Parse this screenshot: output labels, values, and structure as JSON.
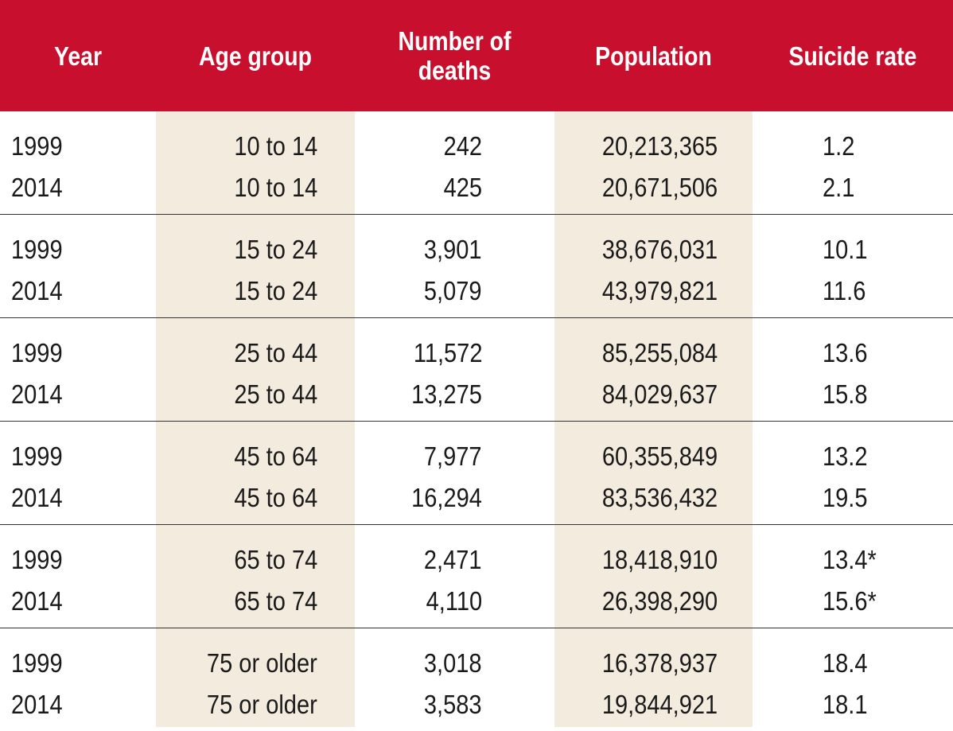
{
  "columns": {
    "year": "Year",
    "age_group": "Age group",
    "deaths_line1": "Number of",
    "deaths_line2": "deaths",
    "population": "Population",
    "rate": "Suicide rate"
  },
  "groups": [
    {
      "rows": [
        {
          "year": "1999",
          "age_group": "10 to 14",
          "deaths": "242",
          "population": "20,213,365",
          "rate": "1.2"
        },
        {
          "year": "2014",
          "age_group": "10 to 14",
          "deaths": "425",
          "population": "20,671,506",
          "rate": "2.1"
        }
      ]
    },
    {
      "rows": [
        {
          "year": "1999",
          "age_group": "15 to 24",
          "deaths": "3,901",
          "population": "38,676,031",
          "rate": "10.1"
        },
        {
          "year": "2014",
          "age_group": "15 to 24",
          "deaths": "5,079",
          "population": "43,979,821",
          "rate": "11.6"
        }
      ]
    },
    {
      "rows": [
        {
          "year": "1999",
          "age_group": "25 to 44",
          "deaths": "11,572",
          "population": "85,255,084",
          "rate": "13.6"
        },
        {
          "year": "2014",
          "age_group": "25 to 44",
          "deaths": "13,275",
          "population": "84,029,637",
          "rate": "15.8"
        }
      ]
    },
    {
      "rows": [
        {
          "year": "1999",
          "age_group": "45 to 64",
          "deaths": "7,977",
          "population": "60,355,849",
          "rate": "13.2"
        },
        {
          "year": "2014",
          "age_group": "45 to 64",
          "deaths": "16,294",
          "population": "83,536,432",
          "rate": "19.5"
        }
      ]
    },
    {
      "rows": [
        {
          "year": "1999",
          "age_group": "65 to 74",
          "deaths": "2,471",
          "population": "18,418,910",
          "rate": "13.4*"
        },
        {
          "year": "2014",
          "age_group": "65 to 74",
          "deaths": "4,110",
          "population": "26,398,290",
          "rate": "15.6*"
        }
      ]
    },
    {
      "rows": [
        {
          "year": "1999",
          "age_group": "75 or older",
          "deaths": "3,018",
          "population": "16,378,937",
          "rate": "18.4"
        },
        {
          "year": "2014",
          "age_group": "75 or older",
          "deaths": "3,583",
          "population": "19,844,921",
          "rate": "18.1"
        }
      ]
    }
  ],
  "colors": {
    "header_bg": "#c8102e",
    "header_text": "#ffffff",
    "shade": "#f4ebdf",
    "divider": "#333333"
  }
}
